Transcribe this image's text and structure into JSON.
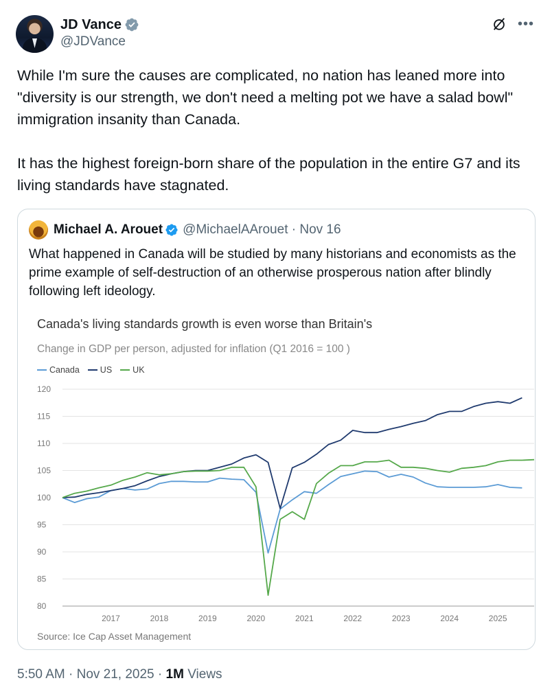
{
  "author": {
    "display_name": "JD Vance",
    "handle": "@JDVance"
  },
  "tweet": {
    "text": "While I'm sure the causes are complicated, no nation has leaned more into \"diversity is our strength, we don't need a melting pot we have a salad bowl\" immigration insanity than Canada.\n\nIt has the highest foreign-born share of the population in the entire G7 and its living standards have stagnated.",
    "time": "5:50 AM · Nov 21, 2025 · ",
    "views_count": "1M",
    "views_label": " Views"
  },
  "icons": {
    "verified": "verified-badge-icon",
    "grok": "grok-icon",
    "more": "more-options-icon"
  },
  "quote": {
    "display_name": "Michael A. Arouet",
    "handle_date": "@MichaelAArouet · Nov 16",
    "text": "What happened in Canada will be studied by many historians and economists as the prime example of self-destruction of an otherwise prosperous nation after blindly following left ideology."
  },
  "colors": {
    "canada": "#5b9bd5",
    "us": "#1f3a6e",
    "uk": "#55a84a",
    "verified": "#1d9bf0",
    "gray_badge": "#829aab"
  },
  "chart_data": {
    "type": "line",
    "title": "Canada's living standards growth is even worse than Britain's",
    "subtitle": "Change in GDP per person, adjusted for inflation (Q1 2016 = 100 )",
    "source": "Source: Ice Cap Asset Management",
    "ylim": [
      80,
      120
    ],
    "xlim": [
      2016.0,
      2025.75
    ],
    "yticks": [
      "80",
      "85",
      "90",
      "95",
      "100",
      "105",
      "110",
      "115",
      "120"
    ],
    "xticks": [
      "2017",
      "2018",
      "2019",
      "2020",
      "2021",
      "2022",
      "2023",
      "2024",
      "2025"
    ],
    "legend": [
      "Canada",
      "US",
      "UK"
    ],
    "series": [
      {
        "name": "Canada",
        "x": [
          2016.0,
          2016.25,
          2016.5,
          2016.75,
          2017.0,
          2017.25,
          2017.5,
          2017.75,
          2018.0,
          2018.25,
          2018.5,
          2018.75,
          2019.0,
          2019.25,
          2019.5,
          2019.75,
          2020.0,
          2020.25,
          2020.5,
          2020.75,
          2021.0,
          2021.25,
          2021.5,
          2021.75,
          2022.0,
          2022.25,
          2022.5,
          2022.75,
          2023.0,
          2023.25,
          2023.5,
          2023.75,
          2024.0,
          2024.25,
          2024.5,
          2024.75,
          2025.0,
          2025.25,
          2025.5
        ],
        "values": [
          100,
          99.1,
          99.8,
          100.1,
          101.3,
          101.7,
          101.4,
          101.6,
          102.6,
          103.0,
          103.0,
          102.9,
          102.9,
          103.6,
          103.4,
          103.3,
          101.0,
          89.8,
          97.9,
          99.6,
          101.1,
          100.8,
          102.4,
          103.9,
          104.4,
          104.9,
          104.8,
          103.8,
          104.3,
          103.8,
          102.7,
          102.0,
          101.9,
          101.9,
          101.9,
          102.0,
          102.4,
          101.9,
          101.8
        ],
        "y_last_two_trimmed": true
      },
      {
        "name": "US",
        "x": [
          2016.0,
          2016.25,
          2016.5,
          2016.75,
          2017.0,
          2017.25,
          2017.5,
          2017.75,
          2018.0,
          2018.25,
          2018.5,
          2018.75,
          2019.0,
          2019.25,
          2019.5,
          2019.75,
          2020.0,
          2020.25,
          2020.5,
          2020.75,
          2021.0,
          2021.25,
          2021.5,
          2021.75,
          2022.0,
          2022.25,
          2022.5,
          2022.75,
          2023.0,
          2023.25,
          2023.5,
          2023.75,
          2024.0,
          2024.25,
          2024.5,
          2024.75,
          2025.0,
          2025.25,
          2025.5
        ],
        "values": [
          100,
          100.1,
          100.6,
          100.9,
          101.3,
          101.7,
          102.2,
          103.1,
          103.9,
          104.4,
          104.8,
          105.0,
          105.0,
          105.6,
          106.2,
          107.3,
          107.9,
          106.5,
          98.0,
          105.5,
          106.5,
          108.0,
          109.8,
          110.6,
          112.4,
          112.0,
          112.0,
          112.6,
          113.1,
          113.7,
          114.2,
          115.3,
          115.9,
          115.9,
          116.8,
          117.4,
          117.7,
          117.4,
          118.4
        ]
      },
      {
        "name": "UK",
        "x": [
          2016.0,
          2016.25,
          2016.5,
          2016.75,
          2017.0,
          2017.25,
          2017.5,
          2017.75,
          2018.0,
          2018.25,
          2018.5,
          2018.75,
          2019.0,
          2019.25,
          2019.5,
          2019.75,
          2020.0,
          2020.25,
          2020.5,
          2020.75,
          2021.0,
          2021.25,
          2021.5,
          2021.75,
          2022.0,
          2022.25,
          2022.5,
          2022.75,
          2023.0,
          2023.25,
          2023.5,
          2023.75,
          2024.0,
          2024.25,
          2024.5,
          2024.75,
          2025.0,
          2025.25,
          2025.5,
          2025.75
        ],
        "values": [
          100,
          100.8,
          101.2,
          101.8,
          102.3,
          103.2,
          103.8,
          104.6,
          104.2,
          104.4,
          104.8,
          104.9,
          104.9,
          105.0,
          105.6,
          105.6,
          102.0,
          82.0,
          96.0,
          97.4,
          96.0,
          102.6,
          104.5,
          105.9,
          105.9,
          106.6,
          106.6,
          106.9,
          105.6,
          105.6,
          105.4,
          105.0,
          104.7,
          105.4,
          105.6,
          105.9,
          106.6,
          106.9,
          106.9,
          107.0
        ]
      }
    ]
  }
}
